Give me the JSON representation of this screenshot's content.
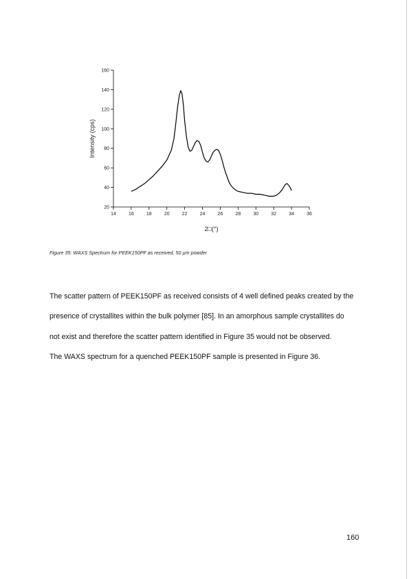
{
  "chart_data": {
    "type": "line",
    "title": "",
    "xlabel": "2□(°)",
    "ylabel": "Intensity (cps)",
    "xlim": [
      14,
      36
    ],
    "ylim": [
      20,
      160
    ],
    "xticks": [
      14,
      16,
      18,
      20,
      22,
      24,
      26,
      28,
      30,
      32,
      34,
      36
    ],
    "yticks": [
      20,
      40,
      60,
      80,
      100,
      120,
      140,
      160
    ],
    "grid": false,
    "legend": "none",
    "line_color": "#000000",
    "series": [
      {
        "x": [
          16.0,
          16.5,
          17.0,
          17.5,
          18.0,
          18.5,
          19.0,
          19.5,
          20.0,
          20.5,
          20.8,
          21.0,
          21.2,
          21.4,
          21.55,
          21.7,
          21.85,
          22.0,
          22.2,
          22.4,
          22.6,
          22.8,
          23.0,
          23.2,
          23.4,
          23.6,
          23.8,
          24.0,
          24.2,
          24.4,
          24.6,
          24.8,
          25.0,
          25.2,
          25.4,
          25.6,
          25.8,
          26.0,
          26.2,
          26.4,
          26.6,
          26.8,
          27.0,
          27.2,
          27.5,
          27.8,
          28.0,
          28.5,
          29.0,
          29.5,
          30.0,
          30.5,
          31.0,
          31.5,
          32.0,
          32.3,
          32.6,
          32.9,
          33.1,
          33.3,
          33.5,
          33.7,
          33.9,
          34.0
        ],
        "y": [
          36,
          38,
          41,
          44,
          48,
          52,
          57,
          62,
          68,
          78,
          90,
          105,
          122,
          134,
          139,
          136,
          125,
          108,
          92,
          81,
          77,
          78,
          82,
          86,
          88,
          87,
          83,
          76,
          70,
          67,
          66,
          68,
          72,
          76,
          78,
          79,
          78,
          74,
          68,
          61,
          55,
          50,
          45,
          42,
          39,
          37,
          36,
          35,
          34,
          34,
          33,
          33,
          32,
          31,
          31,
          32,
          34,
          37,
          40,
          43,
          44,
          42,
          39,
          37
        ]
      }
    ]
  },
  "figure": {
    "caption": "Figure 35: WAXS Spectrum for PEEK150PF as received, 50 µm powder"
  },
  "body": {
    "line1": "The scatter pattern of PEEK150PF as received consists of 4 well defined peaks created by the",
    "line2": "presence of crystallites within the bulk polymer [85]. In an amorphous sample crystallites do",
    "line3": "not exist and therefore the scatter pattern identified in Figure 35 would not be observed.",
    "line4": "The WAXS spectrum for a quenched PEEK150PF sample is presented in Figure 36."
  },
  "page_number": "160"
}
